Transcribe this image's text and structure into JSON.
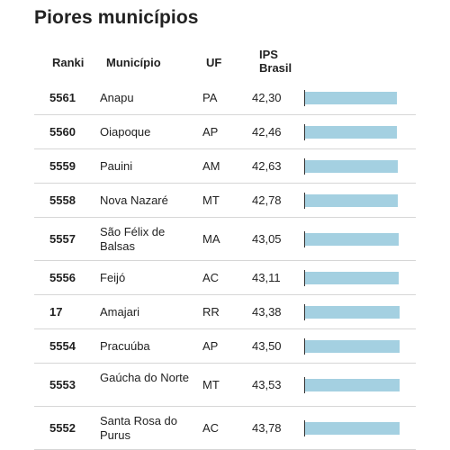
{
  "title": "Piores municípios",
  "columns": {
    "rank": "Ranki",
    "municipio": "Município",
    "uf": "UF",
    "ips_line1": "IPS",
    "ips_line2": "Brasil"
  },
  "colors": {
    "bar": "#a4d0e1",
    "axis": "#333333",
    "divider": "#d6d6d6"
  },
  "ips_bar_scale_max": 44,
  "rows": [
    {
      "rank": "5561",
      "municipio": "Anapu",
      "uf": "PA",
      "ips": "42,30",
      "ips_value": 42.3
    },
    {
      "rank": "5560",
      "municipio": "Oiapoque",
      "uf": "AP",
      "ips": "42,46",
      "ips_value": 42.46
    },
    {
      "rank": "5559",
      "municipio": "Pauini",
      "uf": "AM",
      "ips": "42,63",
      "ips_value": 42.63
    },
    {
      "rank": "5558",
      "municipio": "Nova Nazaré",
      "uf": "MT",
      "ips": "42,78",
      "ips_value": 42.78
    },
    {
      "rank": "5557",
      "municipio": "São Félix de Balsas",
      "uf": "MA",
      "ips": "43,05",
      "ips_value": 43.05
    },
    {
      "rank": "5556",
      "municipio": "Feijó",
      "uf": "AC",
      "ips": "43,11",
      "ips_value": 43.11
    },
    {
      "rank": "17",
      "municipio": "Amajari",
      "uf": "RR",
      "ips": "43,38",
      "ips_value": 43.38
    },
    {
      "rank": "5554",
      "municipio": "Pracuúba",
      "uf": "AP",
      "ips": "43,50",
      "ips_value": 43.5
    },
    {
      "rank": "5553",
      "municipio": "Gaúcha do Norte",
      "uf": "MT",
      "ips": "43,53",
      "ips_value": 43.53
    },
    {
      "rank": "5552",
      "municipio": "Santa Rosa do Purus",
      "uf": "AC",
      "ips": "43,78",
      "ips_value": 43.78
    }
  ]
}
